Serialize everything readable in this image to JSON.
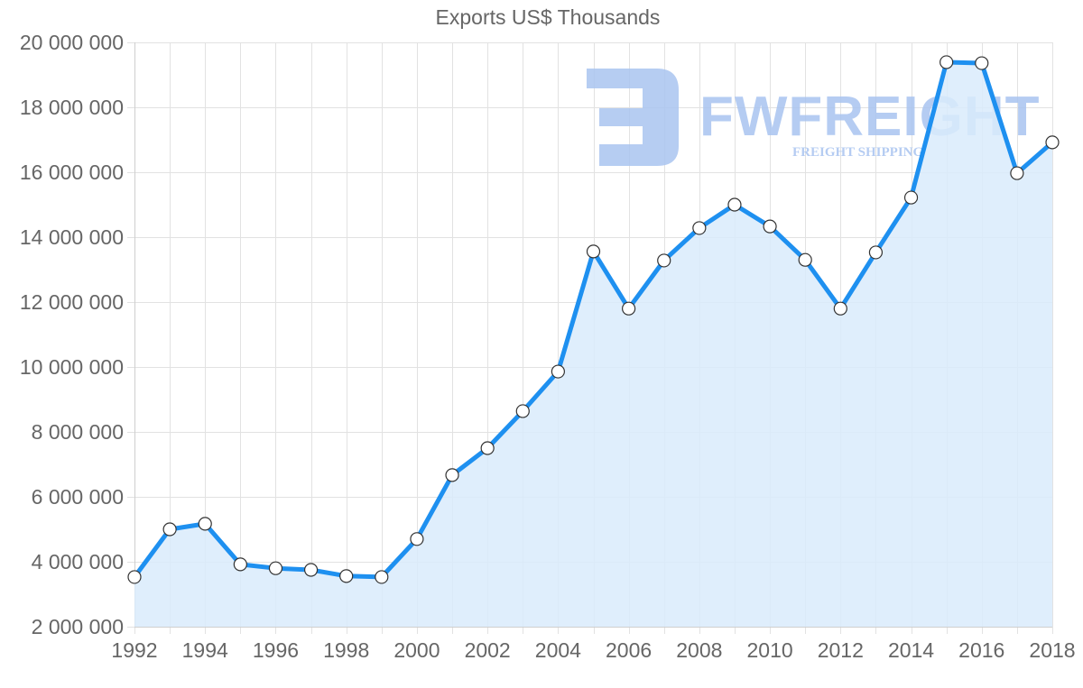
{
  "chart": {
    "title": "Exports US$ Thousands",
    "colors": {
      "line": "#1e90f0",
      "fill": "#d9ebfc",
      "grid": "#e2e2e2",
      "axis_text": "#666666",
      "point_fill": "#ffffff",
      "point_stroke": "#333333",
      "watermark": "#a9c4f0"
    },
    "watermark": {
      "brand": "FWFREIGHT",
      "tagline": "FREIGHT SHIPPING"
    }
  },
  "chart_data": {
    "type": "area",
    "title": "Exports US$ Thousands",
    "xlabel": "",
    "ylabel": "",
    "x": [
      1992,
      1993,
      1994,
      1995,
      1996,
      1997,
      1998,
      1999,
      2000,
      2001,
      2002,
      2003,
      2004,
      2005,
      2006,
      2007,
      2008,
      2009,
      2010,
      2011,
      2012,
      2013,
      2014,
      2015,
      2016,
      2017,
      2018
    ],
    "series": [
      {
        "name": "Exports US$ Thousands",
        "values": [
          3530000,
          5000000,
          5170000,
          3920000,
          3800000,
          3750000,
          3560000,
          3530000,
          4700000,
          6670000,
          7500000,
          8640000,
          9860000,
          13560000,
          11800000,
          13280000,
          14280000,
          15000000,
          14330000,
          13300000,
          11800000,
          13530000,
          15220000,
          19390000,
          19360000,
          15970000,
          16920000
        ]
      }
    ],
    "ylim": [
      2000000,
      20000000
    ],
    "y_ticks": [
      "2 000 000",
      "4 000 000",
      "6 000 000",
      "8 000 000",
      "10 000 000",
      "12 000 000",
      "14 000 000",
      "16 000 000",
      "18 000 000",
      "20 000 000"
    ],
    "x_tick_labels": [
      "1992",
      "1994",
      "1996",
      "1998",
      "2000",
      "2002",
      "2004",
      "2006",
      "2008",
      "2010",
      "2012",
      "2014",
      "2016",
      "2018"
    ],
    "grid": true,
    "legend": "none"
  }
}
